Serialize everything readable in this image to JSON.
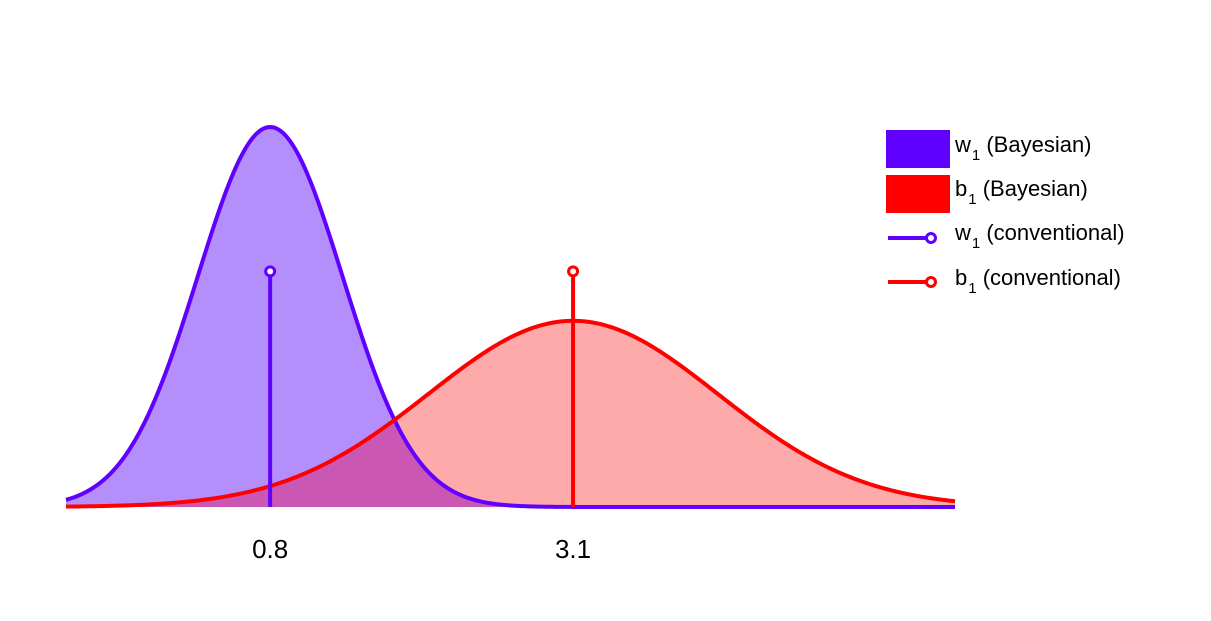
{
  "chart_data": {
    "type": "area",
    "xticks": [
      {
        "value": 0.8,
        "label": "0.8"
      },
      {
        "value": 3.1,
        "label": "3.1"
      }
    ],
    "xlim": [
      -0.75,
      6.0
    ],
    "ylim": [
      0,
      1.3
    ],
    "grid": false,
    "legend_placement": "top-right",
    "series": [
      {
        "key": "w1_bayes",
        "kind": "density",
        "name_main": "w",
        "name_sub": "1",
        "name_suffix": " (Bayesian)",
        "mean": 0.8,
        "sd": 0.55,
        "peak": 1.0,
        "line_color": "#6000ff",
        "fill_color": "#b48ffc"
      },
      {
        "key": "b1_bayes",
        "kind": "density",
        "name_main": "b",
        "name_sub": "1",
        "name_suffix": " (Bayesian)",
        "mean": 3.1,
        "sd": 1.1,
        "peak": 0.49,
        "line_color": "#ff0000",
        "fill_color": "#ffaaaa"
      },
      {
        "key": "w1_conv",
        "kind": "stem",
        "name_main": "w",
        "name_sub": "1",
        "name_suffix": " (conventional)",
        "x": 0.8,
        "y": 0.62,
        "line_color": "#6000ff"
      },
      {
        "key": "b1_conv",
        "kind": "stem",
        "name_main": "b",
        "name_sub": "1",
        "name_suffix": " (conventional)",
        "x": 3.1,
        "y": 0.62,
        "line_color": "#ff0000"
      }
    ],
    "overlap_color": "#cb57b5"
  }
}
